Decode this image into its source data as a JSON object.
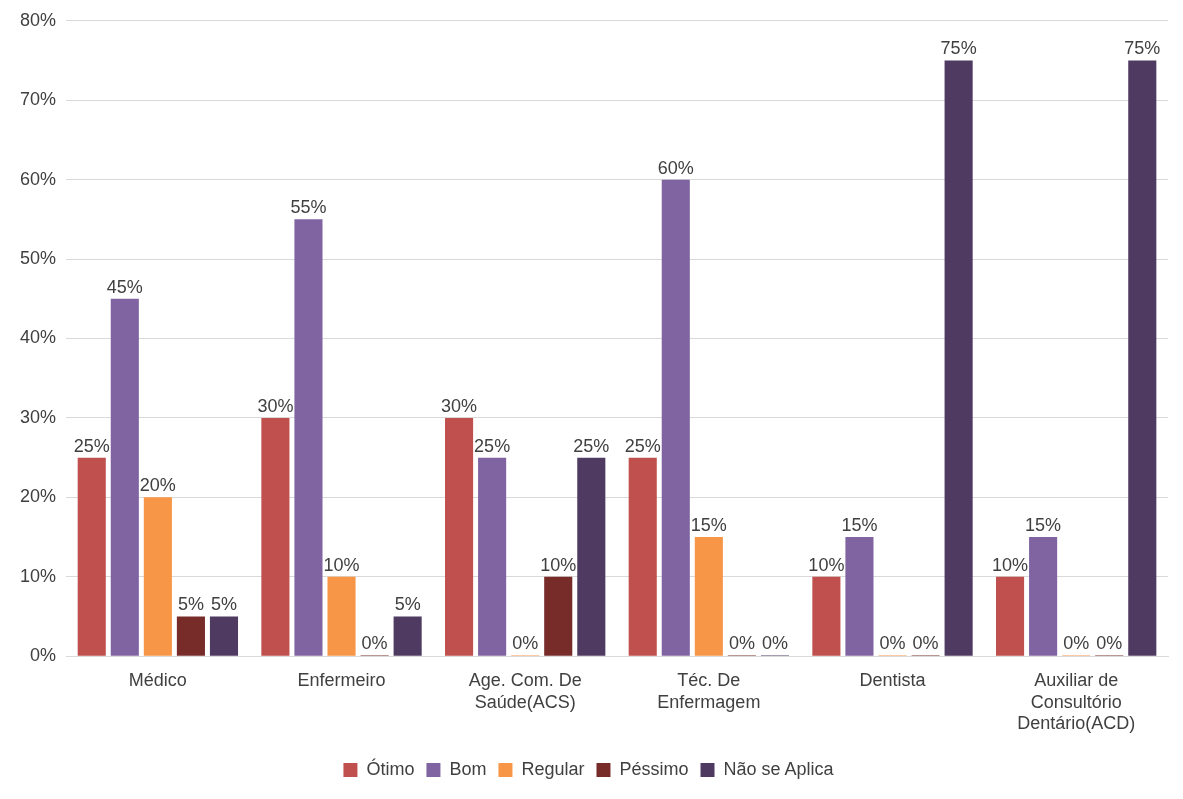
{
  "chart_data": {
    "type": "bar",
    "categories": [
      "Médico",
      "Enfermeiro",
      "Age. Com. De Saúde(ACS)",
      "Téc. De Enfermagem",
      "Dentista",
      "Auxiliar de Consultório Dentário(ACD)"
    ],
    "series": [
      {
        "name": "Ótimo",
        "color": "#c0504d",
        "values": [
          25,
          30,
          30,
          25,
          10,
          10
        ],
        "value_labels": [
          "25%",
          "30%",
          "30%",
          "25%",
          "10%",
          "10%"
        ]
      },
      {
        "name": "Bom",
        "color": "#8064a2",
        "values": [
          45,
          55,
          25,
          60,
          15,
          15
        ],
        "value_labels": [
          "45%",
          "55%",
          "25%",
          "60%",
          "15%",
          "15%"
        ]
      },
      {
        "name": "Regular",
        "color": "#f79646",
        "values": [
          20,
          10,
          0,
          15,
          0,
          0
        ],
        "value_labels": [
          "20%",
          "10%",
          "0%",
          "15%",
          "0%",
          "0%"
        ]
      },
      {
        "name": "Péssimo",
        "color": "#772c2a",
        "values": [
          5,
          0,
          10,
          0,
          0,
          0
        ],
        "value_labels": [
          "5%",
          "0%",
          "10%",
          "0%",
          "0%",
          "0%"
        ]
      },
      {
        "name": "Não se Aplica",
        "color": "#4f3b62",
        "values": [
          5,
          5,
          25,
          0,
          75,
          75
        ],
        "value_labels": [
          "5%",
          "5%",
          "25%",
          "0%",
          "75%",
          "75%"
        ]
      }
    ],
    "ylim": [
      0,
      80
    ],
    "yticks": [
      {
        "value": 0,
        "label": "0%"
      },
      {
        "value": 10,
        "label": "10%"
      },
      {
        "value": 20,
        "label": "20%"
      },
      {
        "value": 30,
        "label": "30%"
      },
      {
        "value": 40,
        "label": "40%"
      },
      {
        "value": 50,
        "label": "50%"
      },
      {
        "value": 60,
        "label": "60%"
      },
      {
        "value": 70,
        "label": "70%"
      },
      {
        "value": 80,
        "label": "80%"
      }
    ],
    "grid": "y",
    "legend": "bottom"
  }
}
